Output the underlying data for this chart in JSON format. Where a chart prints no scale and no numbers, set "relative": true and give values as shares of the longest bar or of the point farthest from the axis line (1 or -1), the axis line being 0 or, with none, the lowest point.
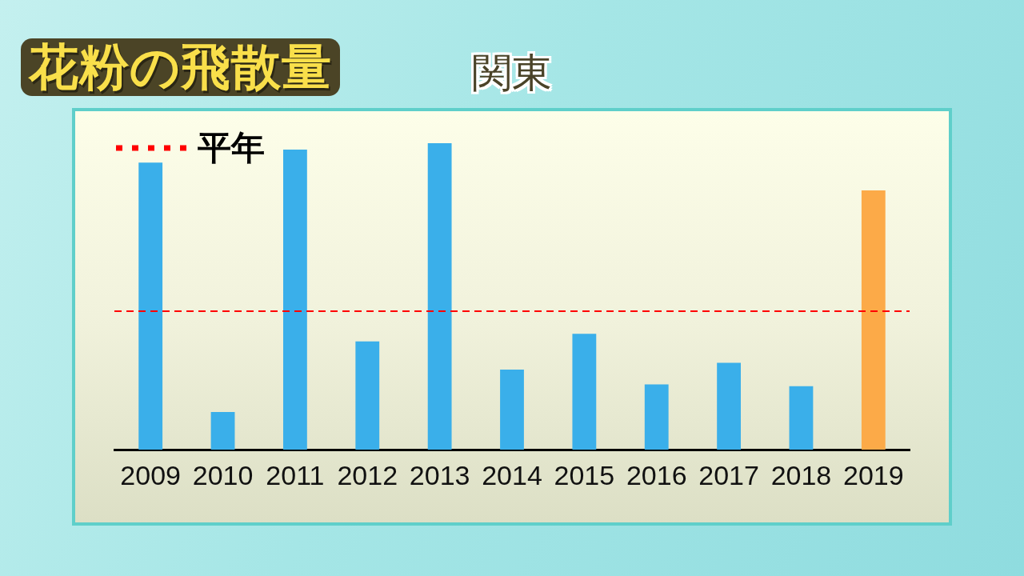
{
  "chart_data": {
    "type": "bar",
    "title": "花粉の飛散量",
    "subtitle": "関東",
    "relative": true,
    "categories": [
      "2009",
      "2010",
      "2011",
      "2012",
      "2013",
      "2014",
      "2015",
      "2016",
      "2017",
      "2018",
      "2019"
    ],
    "values": [
      0.937,
      0.123,
      0.979,
      0.353,
      1,
      0.261,
      0.378,
      0.213,
      0.283,
      0.207,
      0.846
    ],
    "colors": [
      "#3aafea",
      "#3aafea",
      "#3aafea",
      "#3aafea",
      "#3aafea",
      "#3aafea",
      "#3aafea",
      "#3aafea",
      "#3aafea",
      "#3aafea",
      "#fcaa48"
    ],
    "ref_lines": [
      {
        "axis": "y",
        "value": 0.452,
        "label": "平年",
        "color": "#ff0000",
        "line_style": "dashed"
      }
    ]
  }
}
